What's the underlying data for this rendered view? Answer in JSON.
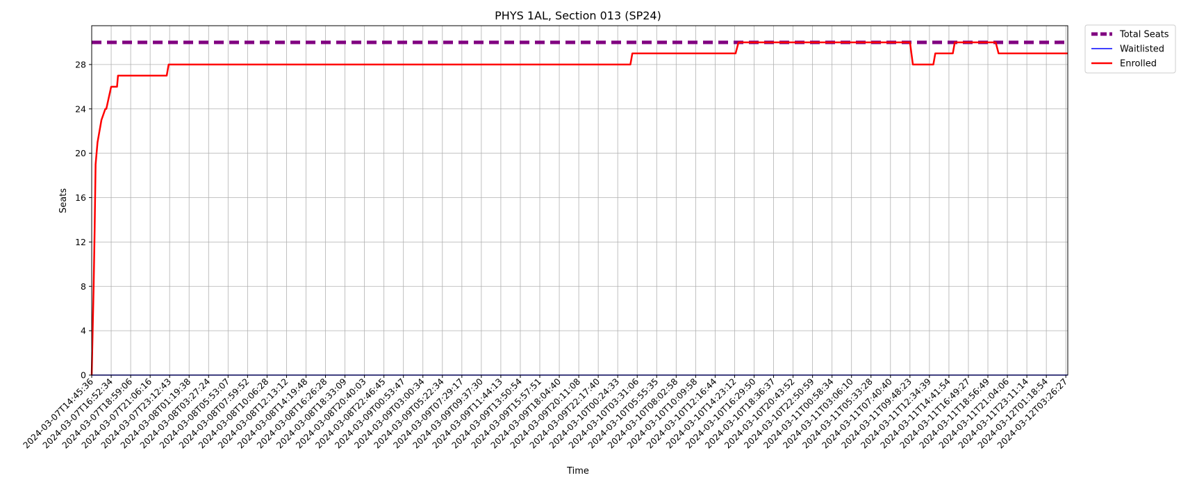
{
  "chart_data": {
    "type": "line",
    "title": "PHYS 1AL, Section 013 (SP24)",
    "xlabel": "Time",
    "ylabel": "Seats",
    "ylim": [
      0,
      31.5
    ],
    "yticks": [
      0,
      4,
      8,
      12,
      16,
      20,
      24,
      28
    ],
    "grid": true,
    "legend_position": "outside-top-right",
    "x_tick_labels": [
      "2024-03-07T14:45:36",
      "2024-03-07T16:52:34",
      "2024-03-07T18:59:06",
      "2024-03-07T21:06:16",
      "2024-03-07T23:12:43",
      "2024-03-08T01:19:38",
      "2024-03-08T03:27:24",
      "2024-03-08T05:53:07",
      "2024-03-08T07:59:52",
      "2024-03-08T10:06:28",
      "2024-03-08T12:13:12",
      "2024-03-08T14:19:48",
      "2024-03-08T16:26:28",
      "2024-03-08T18:33:09",
      "2024-03-08T20:40:03",
      "2024-03-08T22:46:45",
      "2024-03-09T00:53:47",
      "2024-03-09T03:00:34",
      "2024-03-09T05:22:34",
      "2024-03-09T07:29:17",
      "2024-03-09T09:37:30",
      "2024-03-09T11:44:13",
      "2024-03-09T13:50:54",
      "2024-03-09T15:57:51",
      "2024-03-09T18:04:40",
      "2024-03-09T20:11:08",
      "2024-03-09T22:17:40",
      "2024-03-10T00:24:33",
      "2024-03-10T03:31:06",
      "2024-03-10T05:55:35",
      "2024-03-10T08:02:58",
      "2024-03-10T10:09:58",
      "2024-03-10T12:16:44",
      "2024-03-10T14:23:12",
      "2024-03-10T16:29:50",
      "2024-03-10T18:36:37",
      "2024-03-10T20:43:52",
      "2024-03-10T22:50:59",
      "2024-03-11T00:58:34",
      "2024-03-11T03:06:10",
      "2024-03-11T05:33:28",
      "2024-03-11T07:40:40",
      "2024-03-11T09:48:23",
      "2024-03-11T12:34:39",
      "2024-03-11T14:41:54",
      "2024-03-11T16:49:27",
      "2024-03-11T18:56:49",
      "2024-03-11T21:04:06",
      "2024-03-11T23:11:14",
      "2024-03-12T01:18:54",
      "2024-03-12T03:26:27"
    ],
    "x_index_range": [
      0,
      50.1
    ],
    "series": [
      {
        "name": "Total Seats",
        "color": "#800080",
        "style": "dashed",
        "x": [
          0,
          50.1
        ],
        "y": [
          30,
          30
        ]
      },
      {
        "name": "Waitlisted",
        "color": "#0000ff",
        "style": "solid",
        "x": [
          0,
          50.1
        ],
        "y": [
          0,
          0
        ]
      },
      {
        "name": "Enrolled",
        "color": "#ff0000",
        "style": "solid",
        "x": [
          0,
          0.1,
          0.15,
          0.2,
          0.25,
          0.3,
          0.5,
          0.7,
          0.75,
          1.0,
          1.05,
          1.3,
          1.35,
          1.45,
          3.85,
          3.95,
          27.65,
          27.75,
          33.05,
          33.2,
          42.0,
          42.15,
          43.2,
          43.3,
          44.2,
          44.3,
          45.6,
          45.75,
          46.4,
          46.55,
          50.1
        ],
        "y": [
          0,
          8,
          13,
          19,
          20,
          21,
          23,
          24,
          24,
          26,
          26,
          26,
          27,
          27,
          27,
          28,
          28,
          29,
          29,
          30,
          30,
          28,
          28,
          29,
          29,
          30,
          30,
          30,
          30,
          29,
          29
        ]
      }
    ]
  }
}
